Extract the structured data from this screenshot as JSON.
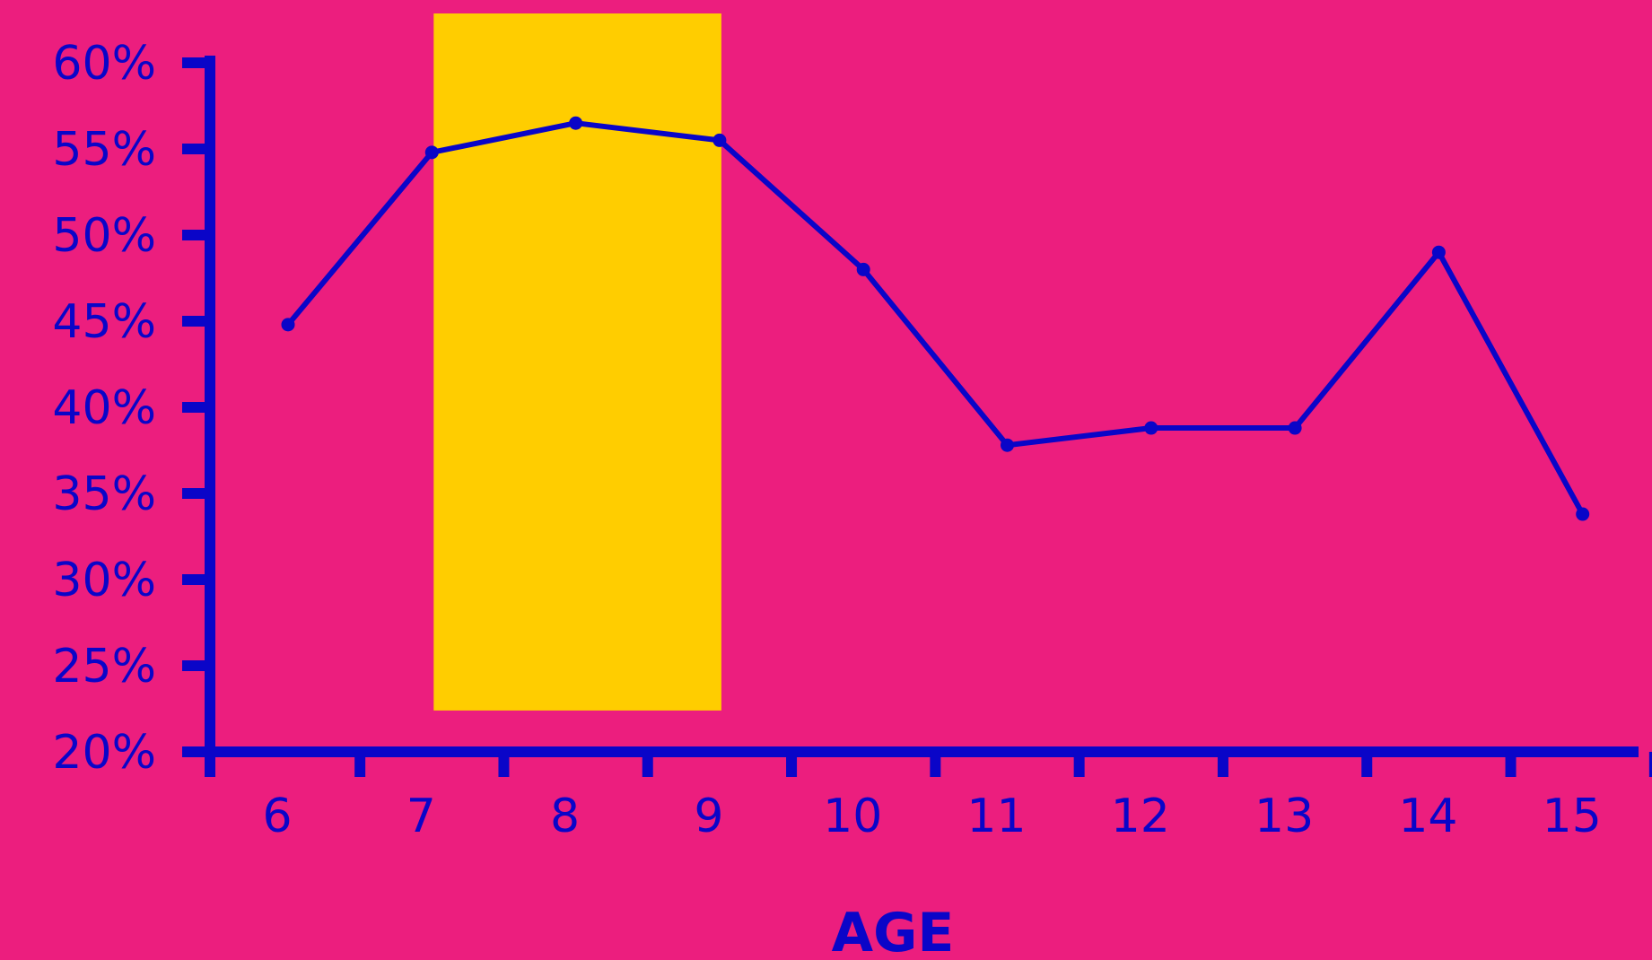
{
  "colors": {
    "background": "#ec1e7e",
    "axis": "#0a05c8",
    "line": "#0a05c8",
    "highlight": "#ffcd00"
  },
  "chart_data": {
    "type": "line",
    "x": [
      6,
      7,
      8,
      9,
      10,
      11,
      12,
      13,
      14,
      15
    ],
    "x_tick_labels": [
      "6",
      "7",
      "8",
      "9",
      "10",
      "11",
      "12",
      "13",
      "14",
      "15"
    ],
    "series": [
      {
        "values": [
          44.8,
          54.8,
          56.5,
          55.5,
          48.0,
          37.8,
          38.8,
          38.8,
          49.0,
          33.8
        ]
      }
    ],
    "y_tick_labels": [
      "20%",
      "25%",
      "30%",
      "35%",
      "40%",
      "45%",
      "50%",
      "55%",
      "60%"
    ],
    "ylim": [
      20,
      60
    ],
    "y_ticks": [
      20,
      25,
      30,
      35,
      40,
      45,
      50,
      55,
      60
    ],
    "xlabel": "AGE",
    "ylabel": "",
    "title": "",
    "highlight_band": {
      "x_from": 7,
      "x_to": 9,
      "y_from": 22.4,
      "y_to": 63
    },
    "grid": false,
    "legend": "none"
  }
}
